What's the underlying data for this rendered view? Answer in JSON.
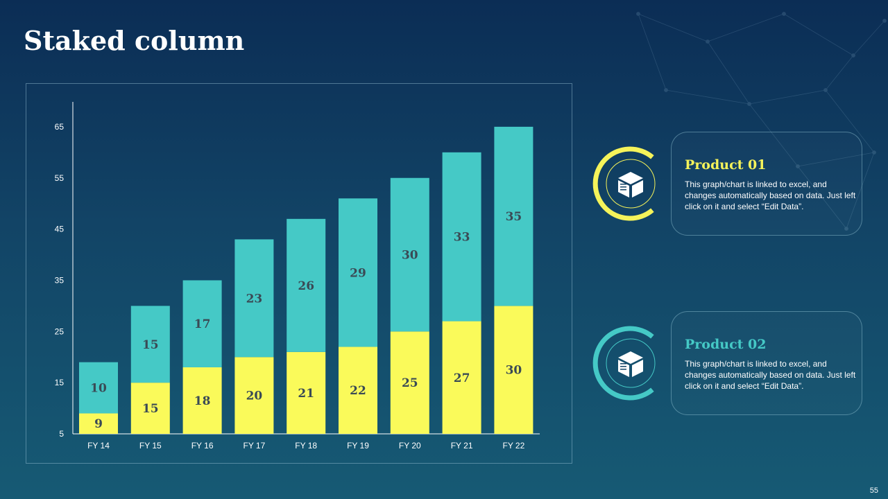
{
  "slide": {
    "title": "Staked column",
    "page_number": "55"
  },
  "colors": {
    "background_top": "#0b2d55",
    "background_bottom": "#165a74",
    "series_1": "#fafa5a",
    "series_2": "#45c9c6"
  },
  "products": [
    {
      "title": "Product 01",
      "description": "This graph/chart is linked to excel, and changes automatically based on data. Just left click on it and select “Edit Data”.",
      "icon": "box-icon",
      "accent": "#f5f35a"
    },
    {
      "title": "Product 02",
      "description": "This graph/chart is linked to excel, and changes automatically based on data. Just left click on it and select “Edit Data”.",
      "icon": "box-icon",
      "accent": "#45c9c6"
    }
  ],
  "chart_data": {
    "type": "bar",
    "stacked": true,
    "categories": [
      "FY 14",
      "FY 15",
      "FY 16",
      "FY 17",
      "FY 18",
      "FY 19",
      "FY 20",
      "FY 21",
      "FY 22"
    ],
    "series": [
      {
        "values": [
          9,
          15,
          18,
          20,
          21,
          22,
          25,
          27,
          30
        ],
        "color": "#fafa5a"
      },
      {
        "values": [
          10,
          15,
          17,
          23,
          26,
          29,
          30,
          33,
          35
        ],
        "color": "#45c9c6"
      }
    ],
    "yticks": [
      5,
      15,
      25,
      35,
      45,
      55,
      65
    ],
    "ylim": [
      5,
      70
    ],
    "grid": false,
    "legend": "none"
  }
}
